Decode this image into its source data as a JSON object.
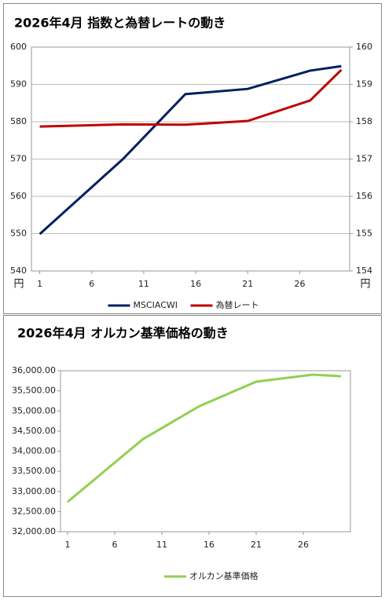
{
  "chart_data": [
    {
      "type": "line",
      "title": "2026年4月 指数と為替レートの動き",
      "x": [
        1,
        9,
        15,
        21,
        27,
        30
      ],
      "xlim": [
        0.2,
        30.8
      ],
      "xticks": [
        1,
        6,
        11,
        16,
        21,
        26
      ],
      "ylim": [
        540,
        600
      ],
      "yticks": [
        540,
        550,
        560,
        570,
        580,
        590,
        600
      ],
      "y2lim": [
        154,
        160
      ],
      "y2ticks": [
        154,
        155,
        156,
        157,
        158,
        159,
        160
      ],
      "y_unit_label": "円",
      "y2_unit_label": "円",
      "grid": true,
      "legend": "bottom",
      "series": [
        {
          "name": "MSCIACWI",
          "color": "#002060",
          "values": [
            549.9,
            570,
            587.4,
            588.8,
            593.7,
            594.9
          ]
        },
        {
          "name": "為替レート",
          "color": "#c00000",
          "axis": "y2",
          "values": [
            157.87,
            157.93,
            157.92,
            158.02,
            158.57,
            159.39
          ]
        }
      ]
    },
    {
      "type": "line",
      "title": "2026年4月 オルカン基準価格の動き",
      "x": [
        1,
        9,
        15,
        21,
        27,
        30
      ],
      "xlim": [
        0.25,
        31
      ],
      "xticks": [
        1,
        6,
        11,
        16,
        21,
        26
      ],
      "ylim": [
        32000,
        36000
      ],
      "yticks": [
        {
          "value": 32000,
          "label": "32,000.00"
        },
        {
          "value": 32500,
          "label": "32,500.00"
        },
        {
          "value": 33000,
          "label": "33,000.00"
        },
        {
          "value": 33500,
          "label": "33,500.00"
        },
        {
          "value": 34000,
          "label": "34,000.00"
        },
        {
          "value": 34500,
          "label": "34,500.00"
        },
        {
          "value": 35000,
          "label": "35,000.00"
        },
        {
          "value": 35500,
          "label": "35,500.00"
        },
        {
          "value": 36000,
          "label": "36,000.00"
        }
      ],
      "grid": false,
      "legend": "bottom",
      "series": [
        {
          "name": "オルカン基準価格",
          "color": "#92d050",
          "values": [
            32741,
            34302,
            35122,
            35727,
            35902,
            35863
          ]
        }
      ]
    }
  ]
}
